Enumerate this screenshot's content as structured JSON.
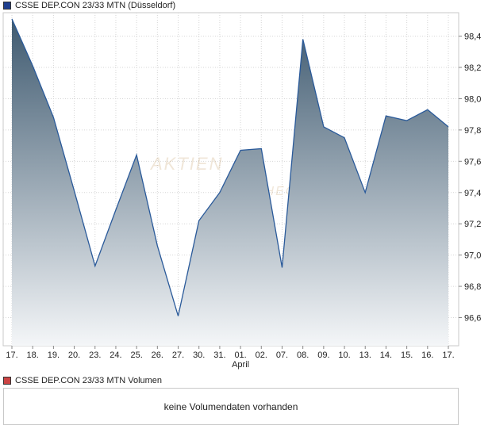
{
  "price_legend": {
    "label": "CSSE DEP.CON 23/33 MTN (Düsseldorf)",
    "color": "#1f3f8f"
  },
  "volume_legend": {
    "label": "CSSE DEP.CON 23/33 MTN Volumen",
    "color": "#cc4444"
  },
  "volume_panel": {
    "message": "keine Volumendaten vorhanden"
  },
  "watermark": {
    "text": "AKTIEN",
    "text2": "CHECK"
  },
  "chart_data": {
    "type": "area",
    "title": "CSSE DEP.CON 23/33 MTN (Düsseldorf)",
    "x_tick_labels": [
      "17.",
      "18.",
      "19.",
      "20.",
      "23.",
      "24.",
      "25.",
      "26.",
      "27.",
      "30.",
      "31.",
      "01.",
      "02.",
      "07.",
      "08.",
      "09.",
      "10.",
      "13.",
      "14.",
      "15.",
      "16.",
      "17."
    ],
    "month_labels": [
      {
        "label": "April",
        "index": 11
      }
    ],
    "values": [
      98.51,
      98.21,
      97.88,
      97.41,
      96.93,
      97.29,
      97.64,
      97.06,
      96.61,
      97.22,
      97.4,
      97.67,
      97.68,
      96.92,
      98.38,
      97.82,
      97.75,
      97.4,
      97.89,
      97.86,
      97.93,
      97.82
    ],
    "y_ticks": [
      96.6,
      96.8,
      97.0,
      97.2,
      97.4,
      97.6,
      97.8,
      98.0,
      98.2,
      98.4
    ],
    "y_tick_labels": [
      "96,6",
      "96,8",
      "97,0",
      "97,2",
      "97,4",
      "97,6",
      "97,8",
      "98,0",
      "98,2",
      "98,4"
    ],
    "ylim": [
      96.42,
      98.55
    ],
    "grid": true,
    "line_color": "#2a5a9a",
    "fill_top_color": "#3f5a70",
    "fill_bottom_color": "#f4f6f8"
  }
}
